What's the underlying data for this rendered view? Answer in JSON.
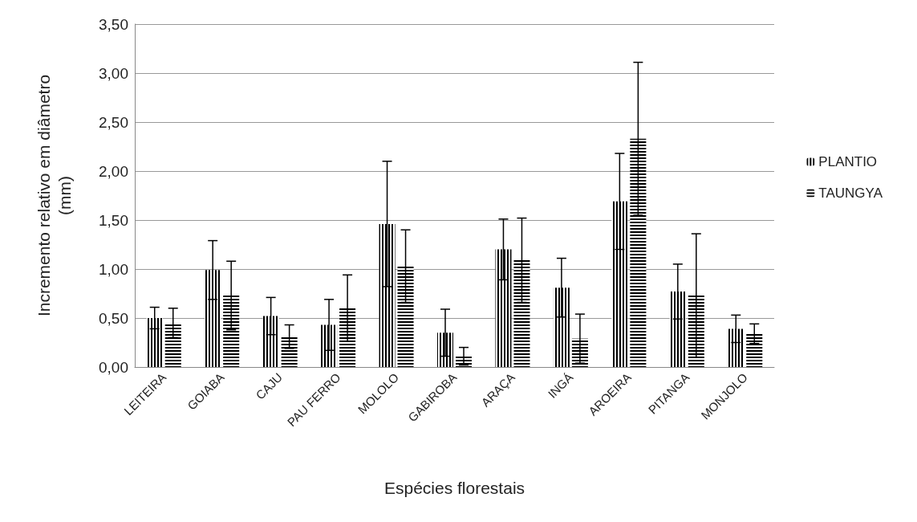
{
  "chart_data": {
    "type": "bar",
    "xlabel": "Espécies florestais",
    "ylabel": "Incremento relativo em diâmetro (mm)",
    "categories": [
      "LEITEIRA",
      "GOIABA",
      "CAJU",
      "PAU FERRO",
      "MOLOLO",
      "GABIROBA",
      "ARAÇA",
      "INGÁ",
      "AROEIRA",
      "PITANGA",
      "MONJOLO"
    ],
    "series": [
      {
        "name": "PLANTIO",
        "color": "#000000",
        "values": [
          0.5,
          0.99,
          0.52,
          0.43,
          1.46,
          0.35,
          1.2,
          0.81,
          1.69,
          0.77,
          0.39
        ],
        "errors": [
          0.11,
          0.3,
          0.19,
          0.26,
          0.64,
          0.24,
          0.31,
          0.3,
          0.49,
          0.28,
          0.14
        ]
      },
      {
        "name": "TAUNGYA",
        "color": "#000000",
        "values": [
          0.45,
          0.73,
          0.31,
          0.6,
          1.03,
          0.11,
          1.09,
          0.29,
          2.33,
          0.73,
          0.34
        ],
        "errors": [
          0.15,
          0.35,
          0.12,
          0.34,
          0.37,
          0.09,
          0.43,
          0.25,
          0.78,
          0.63,
          0.1
        ]
      }
    ],
    "ylim": [
      0,
      3.5
    ],
    "yticks": [
      {
        "value": 0,
        "label": "0,00"
      },
      {
        "value": 0.5,
        "label": "0,50"
      },
      {
        "value": 1,
        "label": "1,00"
      },
      {
        "value": 1.5,
        "label": "1,50"
      },
      {
        "value": 2,
        "label": "2,00"
      },
      {
        "value": 2.5,
        "label": "2,50"
      },
      {
        "value": 3,
        "label": "3,00"
      },
      {
        "value": 3.5,
        "label": "3,50"
      }
    ],
    "grid": "y",
    "legend": "right"
  }
}
